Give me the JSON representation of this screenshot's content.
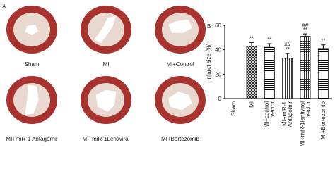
{
  "panel_a": {
    "label": "A",
    "captions": [
      "Sham",
      "MI",
      "MI+Control",
      "MI+miR-1 Antagomir",
      "MI+miR-1Lentiviral",
      "MI+Bortezomib"
    ]
  },
  "chart_data": {
    "type": "bar",
    "panel_label": "B",
    "y_label": "Infarct size (%)",
    "categories": [
      [
        "Sham"
      ],
      [
        "MI"
      ],
      [
        "MI+control",
        "vector"
      ],
      [
        "MI+miR-1",
        "Antagomir"
      ],
      [
        "MI+miR-1lentiviral",
        "vector"
      ],
      [
        "MI+Bortezomib"
      ]
    ],
    "values": [
      0,
      43,
      42,
      33,
      51,
      41
    ],
    "errors": [
      0,
      3,
      3,
      4,
      2,
      3
    ],
    "significance": [
      [],
      [
        "**"
      ],
      [
        "**"
      ],
      [
        "##",
        "**"
      ],
      [
        "##",
        "**"
      ],
      [
        "**"
      ]
    ],
    "patterns": [
      "none",
      "crosshatch",
      "horizontal",
      "vertical",
      "grid",
      "horizontal"
    ],
    "color": "#000000",
    "ylim": [
      0,
      60
    ],
    "yticks": [
      0,
      20,
      40,
      60
    ]
  }
}
